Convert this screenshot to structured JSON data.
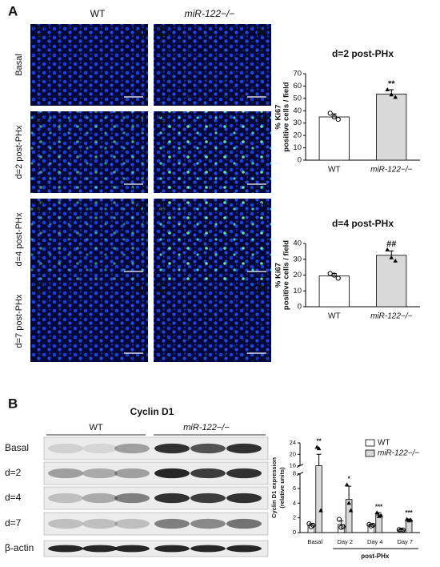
{
  "figure": {
    "panel_a": "A",
    "panel_b": "B",
    "col_labels": [
      "WT",
      "miR-122−/−"
    ],
    "row_labels": [
      "Basal",
      "d=2 post-PHx",
      "d=4 post-PHx",
      "d=7 post-PHx"
    ],
    "image_tags": [
      "(a)",
      "(b)",
      "(c)",
      "(d)",
      "(e)",
      "(f)",
      "(g)",
      "(h)"
    ],
    "stain_labels": [
      "DAPI",
      "Ki67"
    ],
    "scale_bar": "50µm",
    "blot_title": "Cyclin D1",
    "blot_groups": [
      "WT",
      "miR-122−/−"
    ],
    "blot_rows": [
      "Basal",
      "d=2",
      "d=4",
      "d=7",
      "β-actin"
    ]
  },
  "chart_data": [
    {
      "type": "bar",
      "title": "d=2 post-PHx",
      "y_label": [
        "% Ki67",
        "positive cells / field"
      ],
      "categories": [
        "WT",
        "miR-122−/−"
      ],
      "values": [
        35,
        53.5
      ],
      "errors": [
        2.5,
        3.5
      ],
      "colors": [
        "#ffffff",
        "#d9d9d9"
      ],
      "points": [
        [
          38,
          35,
          33
        ],
        [
          57,
          53,
          51
        ]
      ],
      "annotations": [
        {
          "index": 1,
          "text": "**"
        }
      ],
      "ylim": [
        0,
        70
      ],
      "yticks": [
        0,
        10,
        20,
        30,
        40,
        50,
        60,
        70
      ]
    },
    {
      "type": "bar",
      "title": "d=4 post-PHx",
      "y_label": [
        "% Ki67",
        "positive cells / field"
      ],
      "categories": [
        "WT",
        "miR-122−/−"
      ],
      "values": [
        19.5,
        32.5
      ],
      "errors": [
        1.5,
        2.8
      ],
      "colors": [
        "#ffffff",
        "#d9d9d9"
      ],
      "points": [
        [
          21,
          20,
          18
        ],
        [
          36,
          31,
          29
        ]
      ],
      "annotations": [
        {
          "index": 1,
          "text": "##"
        }
      ],
      "ylim": [
        0,
        40
      ],
      "yticks": [
        0,
        10,
        20,
        30,
        40
      ]
    },
    {
      "type": "bar",
      "y_label": [
        "Cyclin D1 expression",
        "(relative units)"
      ],
      "x_label": "post-PHx",
      "categories": [
        "Basal",
        "Day 2",
        "Day 4",
        "Day 7"
      ],
      "series": [
        {
          "name": "WT",
          "color": "#ffffff",
          "values": [
            1.0,
            1.1,
            1.0,
            0.35
          ],
          "errors": [
            0.2,
            0.5,
            0.15,
            0.1
          ],
          "points": [
            [
              1.2,
              0.8,
              1.0
            ],
            [
              1.8,
              0.7,
              0.8
            ],
            [
              1.1,
              0.9,
              1.0
            ],
            [
              0.4,
              0.3,
              0.35
            ]
          ]
        },
        {
          "name": "miR-122−/−",
          "color": "#d9d9d9",
          "values": [
            16,
            4.5,
            2.4,
            1.7
          ],
          "errors": [
            4,
            1.8,
            0.3,
            0.15
          ],
          "points": [
            [
              22.5,
              22,
              3
            ],
            [
              6.5,
              4,
              3
            ],
            [
              2.7,
              2.2,
              2.3
            ],
            [
              1.8,
              1.6,
              1.7
            ]
          ]
        }
      ],
      "annotations": [
        {
          "index": 0,
          "text": "**"
        },
        {
          "index": 1,
          "text": "*"
        },
        {
          "index": 2,
          "text": "***"
        },
        {
          "index": 3,
          "text": "***"
        }
      ],
      "ylim": [
        0,
        24
      ],
      "ybreak": [
        8,
        16
      ],
      "yticks": [
        0,
        2,
        4,
        6,
        8,
        16,
        20,
        24
      ],
      "legend": "top-right"
    }
  ]
}
